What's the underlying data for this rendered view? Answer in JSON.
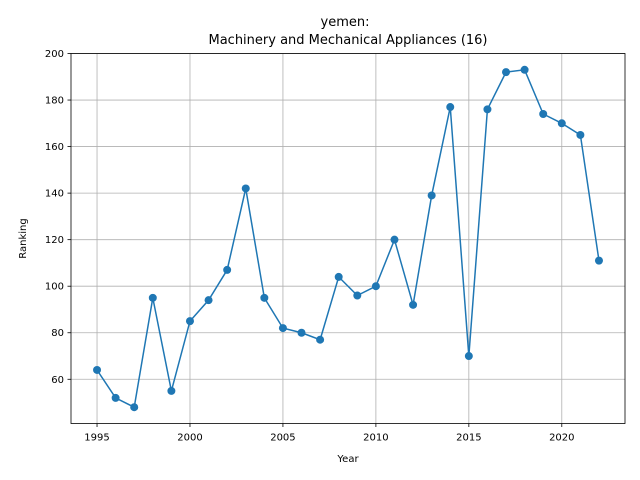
{
  "chart_data": {
    "type": "line",
    "title_line1": "yemen:",
    "title_line2": "Machinery and Mechanical Appliances (16)",
    "xlabel": "Year",
    "ylabel": "Ranking",
    "xlim": [
      1993.6,
      2023.4
    ],
    "ylim": [
      41,
      200
    ],
    "xticks": [
      1995,
      2000,
      2005,
      2010,
      2015,
      2020
    ],
    "yticks": [
      60,
      80,
      100,
      120,
      140,
      160,
      180,
      200
    ],
    "grid": true,
    "color": "#1f77b4",
    "x": [
      1995,
      1996,
      1997,
      1998,
      1999,
      2000,
      2001,
      2002,
      2003,
      2004,
      2005,
      2006,
      2007,
      2008,
      2009,
      2010,
      2011,
      2012,
      2013,
      2014,
      2015,
      2016,
      2017,
      2018,
      2019,
      2020,
      2021,
      2022
    ],
    "y": [
      64,
      52,
      48,
      95,
      55,
      85,
      94,
      107,
      142,
      95,
      82,
      80,
      77,
      104,
      96,
      100,
      120,
      92,
      139,
      177,
      70,
      176,
      192,
      193,
      174,
      170,
      165,
      111
    ]
  }
}
